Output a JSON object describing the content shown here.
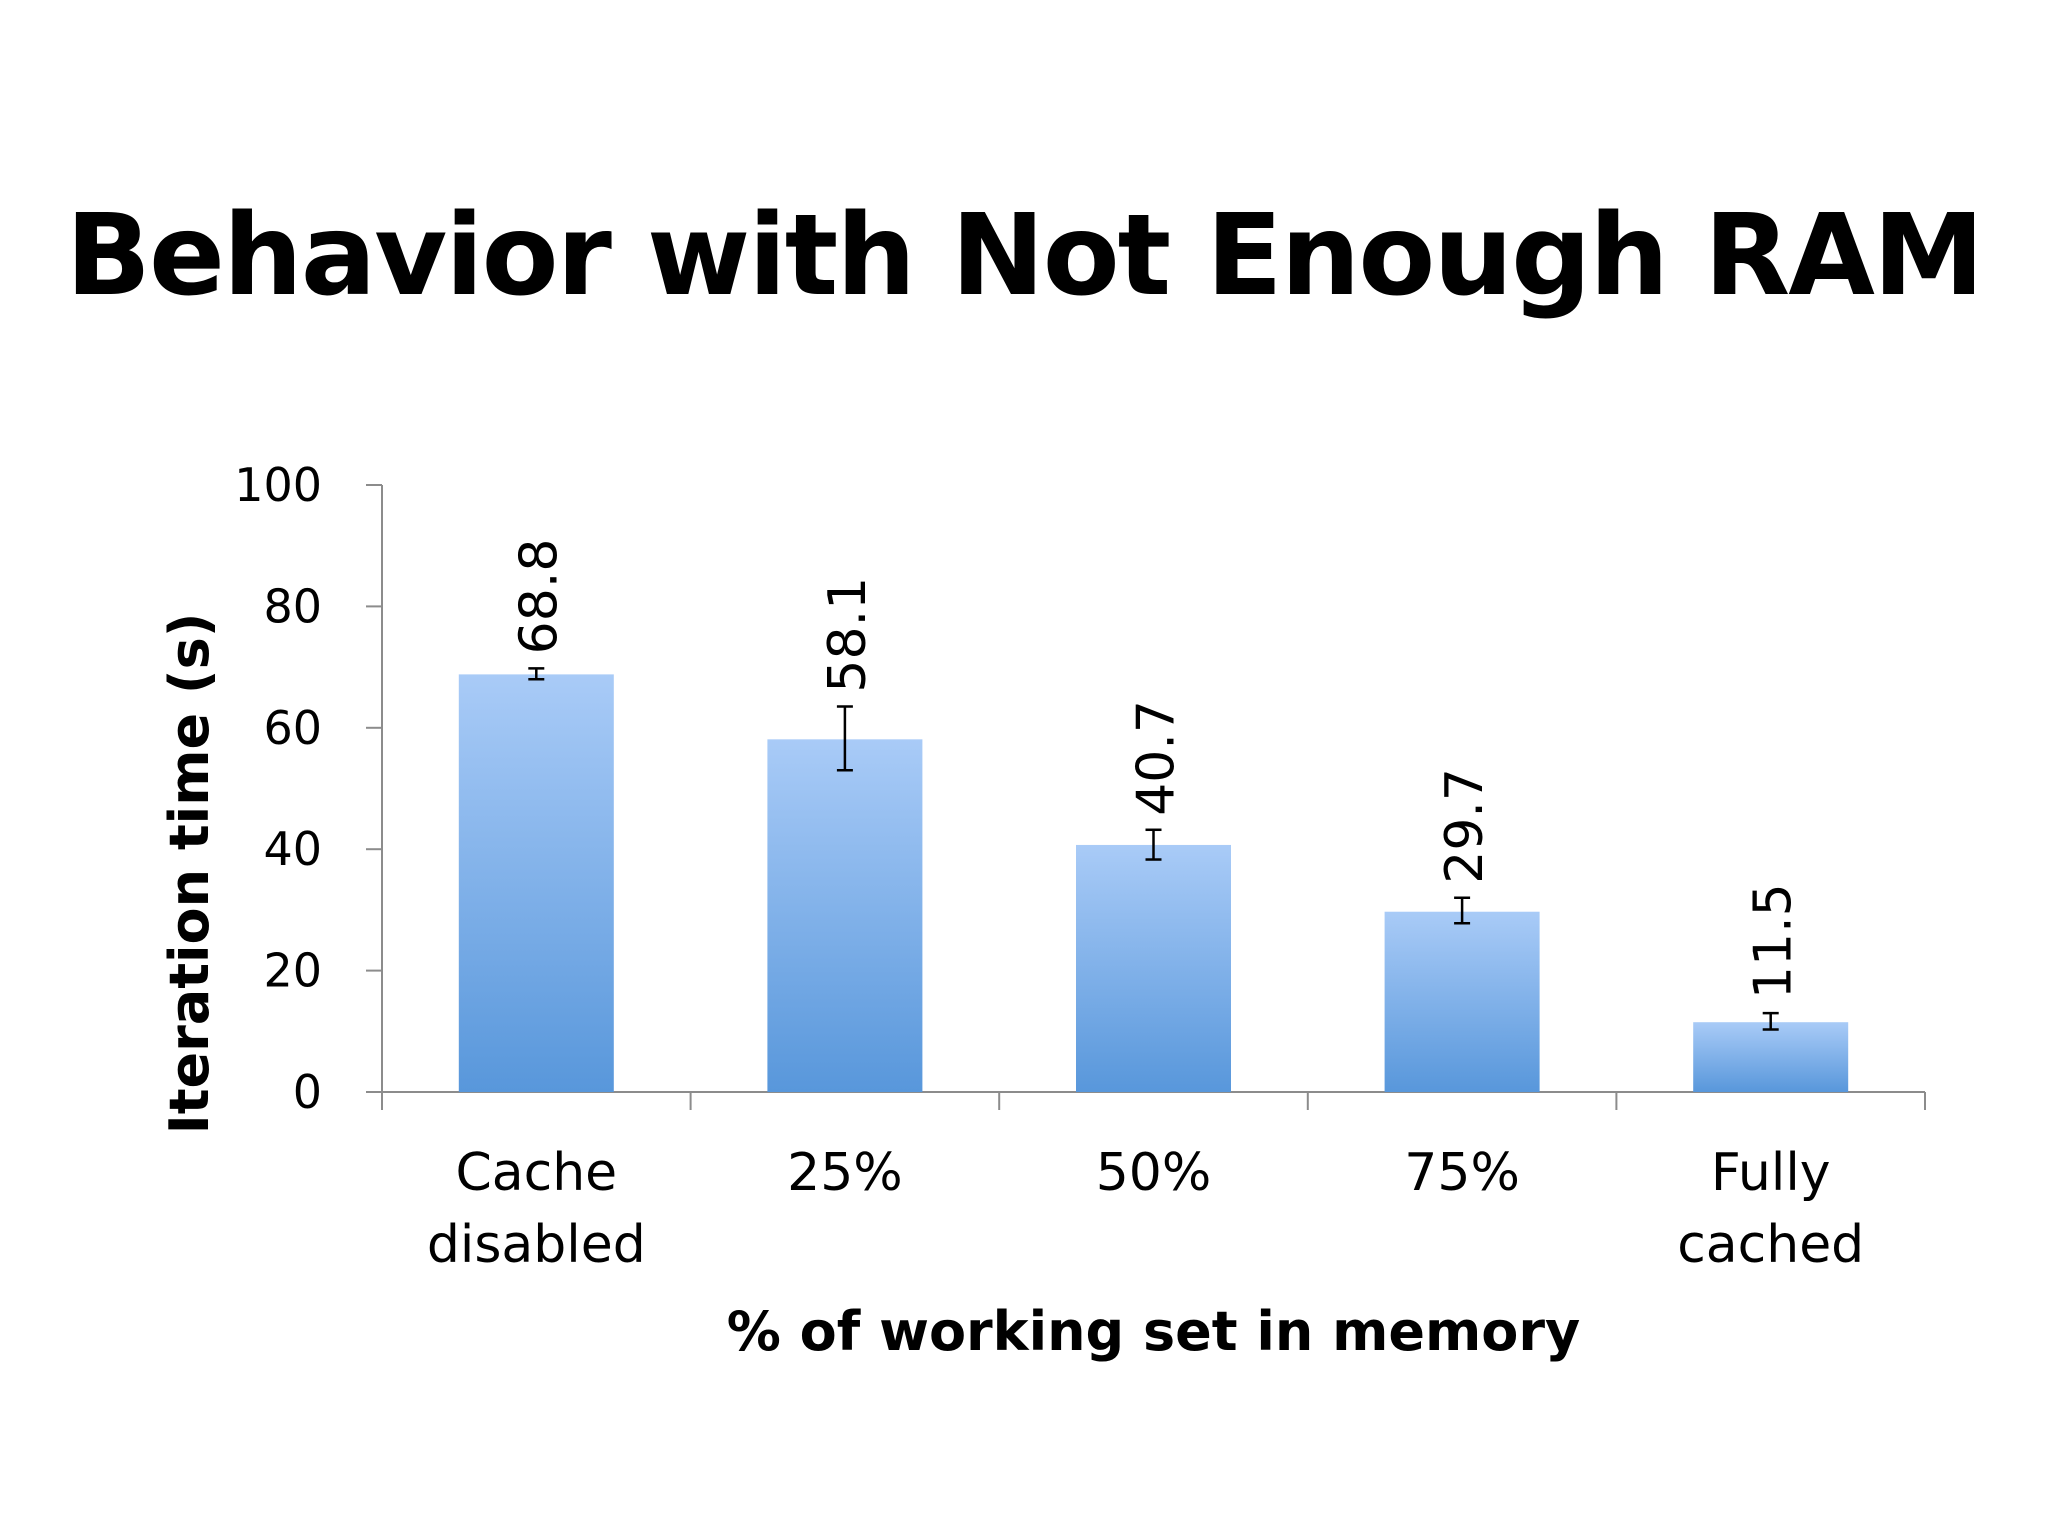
{
  "slide": {
    "title": "Behavior with Not Enough RAM"
  },
  "colors": {
    "bar_top": "#a9cbf7",
    "bar_bottom": "#5897db",
    "axis": "#8c8c8c",
    "error_bar": "#000000"
  },
  "chart_data": {
    "type": "bar",
    "title": "",
    "xlabel": "% of working set in memory",
    "ylabel": "Iteration time (s)",
    "ylim": [
      0,
      100
    ],
    "yticks": [
      0,
      20,
      40,
      60,
      80,
      100
    ],
    "categories": [
      [
        "Cache",
        "disabled"
      ],
      [
        "25%"
      ],
      [
        "50%"
      ],
      [
        "75%"
      ],
      [
        "Fully",
        "cached"
      ]
    ],
    "values": [
      68.8,
      58.1,
      40.7,
      29.7,
      11.5
    ],
    "data_labels": [
      "68.8",
      "58.1",
      "40.7",
      "29.7",
      "11.5"
    ],
    "error_bars": [
      [
        68.0,
        69.8
      ],
      [
        53.0,
        63.5
      ],
      [
        38.3,
        43.2
      ],
      [
        27.8,
        32.0
      ],
      [
        10.3,
        13.0
      ]
    ],
    "grid": false,
    "legend": "none"
  }
}
